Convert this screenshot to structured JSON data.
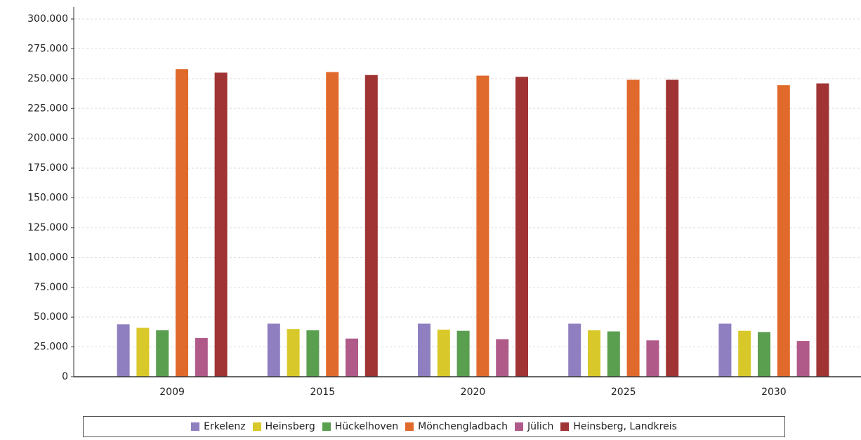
{
  "chart_data": {
    "type": "bar",
    "categories": [
      "2009",
      "2015",
      "2020",
      "2025",
      "2030"
    ],
    "series": [
      {
        "name": "Erkelenz",
        "color": "#8f7fc0",
        "values": [
          44000,
          44500,
          44500,
          44500,
          44500
        ]
      },
      {
        "name": "Heinsberg",
        "color": "#d9c82a",
        "values": [
          41000,
          40000,
          39500,
          39000,
          38500
        ]
      },
      {
        "name": "Hückelhoven",
        "color": "#5a9e4f",
        "values": [
          39000,
          39000,
          38500,
          38000,
          37500
        ]
      },
      {
        "name": "Mönchengladbach",
        "color": "#e06a2b",
        "values": [
          258000,
          255500,
          252500,
          249000,
          244500
        ]
      },
      {
        "name": "Jülich",
        "color": "#b05a8a",
        "values": [
          32500,
          32000,
          31500,
          30500,
          30000
        ]
      },
      {
        "name": "Heinsberg, Landkreis",
        "color": "#a03434",
        "values": [
          255000,
          253000,
          251500,
          249000,
          246000
        ]
      }
    ],
    "ylim": [
      0,
      300000
    ],
    "yticks": [
      0,
      {
        "value": 25000,
        "label": "25.000"
      },
      {
        "value": 50000,
        "label": "50.000"
      },
      {
        "value": 75000,
        "label": "75.000"
      },
      {
        "value": 100000,
        "label": "100.000"
      },
      {
        "value": 125000,
        "label": "125.000"
      },
      {
        "value": 150000,
        "label": "150.000"
      },
      {
        "value": 175000,
        "label": "175.000"
      },
      {
        "value": 200000,
        "label": "200.000"
      },
      {
        "value": 225000,
        "label": "225.000"
      },
      {
        "value": 250000,
        "label": "250.000"
      },
      {
        "value": 275000,
        "label": "275.000"
      },
      {
        "value": 300000,
        "label": "300.000"
      }
    ],
    "grid": true,
    "legend": "bottom"
  }
}
